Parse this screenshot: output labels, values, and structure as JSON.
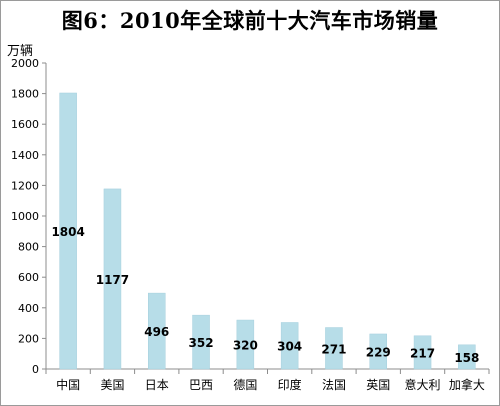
{
  "chart_data": {
    "type": "bar",
    "title": "图6：2010年全球前十大汽车市场销量",
    "ylabel": "万辆",
    "xlabel": "",
    "categories": [
      "中国",
      "美国",
      "日本",
      "巴西",
      "德国",
      "印度",
      "法国",
      "英国",
      "意大利",
      "加拿大"
    ],
    "values": [
      1804,
      1177,
      496,
      352,
      320,
      304,
      271,
      229,
      217,
      158
    ],
    "ylim": [
      0,
      2000
    ],
    "yticks": [
      0,
      200,
      400,
      600,
      800,
      1000,
      1200,
      1400,
      1600,
      1800,
      2000
    ],
    "grid": false,
    "legend": "none",
    "bar_color": "#b7dde8",
    "bar_edge_color": "#a5cfdd",
    "axis_color": "#8c8c8c"
  }
}
